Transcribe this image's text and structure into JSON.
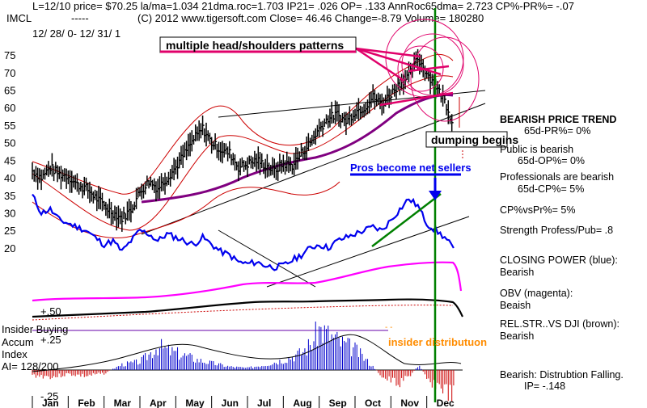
{
  "header": {
    "line1": "L=12/10  price= $70.25  la/ma=1.034 21dma.roc=1.703 IP21= .026 OP= .133 AnnRoc65dma= 2.723 CP%-PR%= -.07",
    "ticker": "IMCL",
    "dashes": "-----",
    "line2": "(C) 2012 www.tigersoft.com    Close=  46.46   Change=-8.79 Volume=  180280",
    "date_range": "12/ 28/ 0- 12/ 31/ 1"
  },
  "annotations": {
    "head_shoulders": "multiple head/shoulders patterns",
    "dumping": "dumping begins",
    "pros_sellers": "Pros become net sellers",
    "insider_dist": "insider distributuon"
  },
  "left_labels": {
    "plus50": "+.50",
    "insider_buying": "Insider Buying",
    "plus25": "+.25",
    "accum": "Accum",
    "index": "Index",
    "ai": "AI= 128/200",
    "minus25": "-.25"
  },
  "side_panel": {
    "trend_title": "BEARISH PRICE TREND",
    "trend_sub": "65d-PR%= 0%",
    "public_title": "Public is bearish",
    "public_sub": "65d-OP%= 0%",
    "prof_title": "Professionals are bearish",
    "prof_sub": "65d-CP%= 5%",
    "cpvspr": "CP%vsPr%=  5%",
    "strength": "Strength Profess/Pub= .8",
    "cp_title": "CLOSING POWER (blue):",
    "cp_val": "Bearish",
    "obv_title": "OBV (magenta):",
    "obv_val": "Beaish",
    "rel_title": "REL.STR..VS DJI (brown):",
    "rel_val": "Bearish",
    "dist_title": "Bearish: Distrubtion Falling.",
    "dist_val": "IP= -.148"
  },
  "colors": {
    "price_bars": "#000000",
    "bands": "#cc0000",
    "ma65": "#800080",
    "closing_power": "#0000ee",
    "obv": "#ff00ff",
    "rel_str": "#000000",
    "accum_pos": "#0000cc",
    "accum_neg": "#cc0000",
    "signal_line": "#008000",
    "highlight": "#e0006a",
    "insider_text": "#ff8c00"
  },
  "chart_data": {
    "type": "line",
    "title": "",
    "xlabel": "",
    "ylabel": "",
    "x_categories": [
      "Jan",
      "Feb",
      "Mar",
      "Apr",
      "May",
      "Jun",
      "Jul",
      "Aug",
      "Sep",
      "Oct",
      "Nov",
      "Dec"
    ],
    "y_ticks": [
      20,
      25,
      30,
      35,
      40,
      45,
      50,
      55,
      60,
      65,
      70,
      75
    ],
    "ylim": [
      17,
      78
    ],
    "grid": false,
    "price_weekly_close": [
      {
        "t": 0.0,
        "v": 42.0
      },
      {
        "t": 0.25,
        "v": 40.0
      },
      {
        "t": 0.5,
        "v": 43.0
      },
      {
        "t": 0.75,
        "v": 41.0
      },
      {
        "t": 1.0,
        "v": 40.5
      },
      {
        "t": 1.25,
        "v": 38.0
      },
      {
        "t": 1.5,
        "v": 37.0
      },
      {
        "t": 1.75,
        "v": 34.5
      },
      {
        "t": 2.0,
        "v": 32.0
      },
      {
        "t": 2.25,
        "v": 30.0
      },
      {
        "t": 2.5,
        "v": 28.5
      },
      {
        "t": 2.75,
        "v": 31.0
      },
      {
        "t": 3.0,
        "v": 36.0
      },
      {
        "t": 3.25,
        "v": 39.0
      },
      {
        "t": 3.5,
        "v": 37.0
      },
      {
        "t": 3.75,
        "v": 40.0
      },
      {
        "t": 4.0,
        "v": 43.0
      },
      {
        "t": 4.25,
        "v": 47.0
      },
      {
        "t": 4.5,
        "v": 51.0
      },
      {
        "t": 4.75,
        "v": 54.0
      },
      {
        "t": 5.0,
        "v": 50.0
      },
      {
        "t": 5.25,
        "v": 48.0
      },
      {
        "t": 5.5,
        "v": 47.0
      },
      {
        "t": 5.75,
        "v": 43.0
      },
      {
        "t": 6.0,
        "v": 44.0
      },
      {
        "t": 6.25,
        "v": 45.0
      },
      {
        "t": 6.5,
        "v": 43.5
      },
      {
        "t": 6.75,
        "v": 42.0
      },
      {
        "t": 7.0,
        "v": 44.0
      },
      {
        "t": 7.25,
        "v": 43.5
      },
      {
        "t": 7.5,
        "v": 47.0
      },
      {
        "t": 7.75,
        "v": 50.0
      },
      {
        "t": 8.0,
        "v": 54.0
      },
      {
        "t": 8.25,
        "v": 57.0
      },
      {
        "t": 8.5,
        "v": 58.0
      },
      {
        "t": 8.75,
        "v": 56.0
      },
      {
        "t": 9.0,
        "v": 59.0
      },
      {
        "t": 9.25,
        "v": 60.0
      },
      {
        "t": 9.5,
        "v": 63.0
      },
      {
        "t": 9.75,
        "v": 61.0
      },
      {
        "t": 10.0,
        "v": 64.0
      },
      {
        "t": 10.25,
        "v": 67.0
      },
      {
        "t": 10.5,
        "v": 69.0
      },
      {
        "t": 10.75,
        "v": 74.0
      },
      {
        "t": 11.0,
        "v": 70.0
      },
      {
        "t": 11.25,
        "v": 66.0
      },
      {
        "t": 11.5,
        "v": 62.0
      },
      {
        "t": 11.75,
        "v": 55.0
      }
    ],
    "series": [
      {
        "name": "CLOSING POWER (blue)",
        "values": [
          {
            "t": 0.0,
            "v": 35
          },
          {
            "t": 0.25,
            "v": 30
          },
          {
            "t": 0.5,
            "v": 31
          },
          {
            "t": 0.75,
            "v": 28
          },
          {
            "t": 1.0,
            "v": 27
          },
          {
            "t": 1.25,
            "v": 26
          },
          {
            "t": 1.5,
            "v": 25
          },
          {
            "t": 1.75,
            "v": 23
          },
          {
            "t": 2.0,
            "v": 21
          },
          {
            "t": 2.25,
            "v": 22
          },
          {
            "t": 2.5,
            "v": 19
          },
          {
            "t": 2.75,
            "v": 22
          },
          {
            "t": 3.0,
            "v": 25
          },
          {
            "t": 3.25,
            "v": 24
          },
          {
            "t": 3.5,
            "v": 22
          },
          {
            "t": 3.75,
            "v": 24
          },
          {
            "t": 4.0,
            "v": 23
          },
          {
            "t": 4.25,
            "v": 22
          },
          {
            "t": 4.5,
            "v": 21
          },
          {
            "t": 4.75,
            "v": 23
          },
          {
            "t": 5.0,
            "v": 21
          },
          {
            "t": 5.25,
            "v": 19
          },
          {
            "t": 5.5,
            "v": 18
          },
          {
            "t": 5.75,
            "v": 16
          },
          {
            "t": 6.0,
            "v": 15.5
          },
          {
            "t": 6.25,
            "v": 16
          },
          {
            "t": 6.5,
            "v": 15
          },
          {
            "t": 6.75,
            "v": 14.5
          },
          {
            "t": 7.0,
            "v": 15
          },
          {
            "t": 7.25,
            "v": 16.5
          },
          {
            "t": 7.5,
            "v": 18
          },
          {
            "t": 7.75,
            "v": 20
          },
          {
            "t": 8.0,
            "v": 21
          },
          {
            "t": 8.25,
            "v": 20
          },
          {
            "t": 8.5,
            "v": 22
          },
          {
            "t": 8.75,
            "v": 23
          },
          {
            "t": 9.0,
            "v": 24
          },
          {
            "t": 9.25,
            "v": 25
          },
          {
            "t": 9.5,
            "v": 26
          },
          {
            "t": 9.75,
            "v": 25
          },
          {
            "t": 10.0,
            "v": 28
          },
          {
            "t": 10.25,
            "v": 31
          },
          {
            "t": 10.5,
            "v": 34
          },
          {
            "t": 10.75,
            "v": 32
          },
          {
            "t": 11.0,
            "v": 27
          },
          {
            "t": 11.25,
            "v": 25
          },
          {
            "t": 11.5,
            "v": 23
          },
          {
            "t": 11.75,
            "v": 20
          }
        ]
      }
    ],
    "signal_vertical_month": 10.75,
    "legend": "none"
  }
}
